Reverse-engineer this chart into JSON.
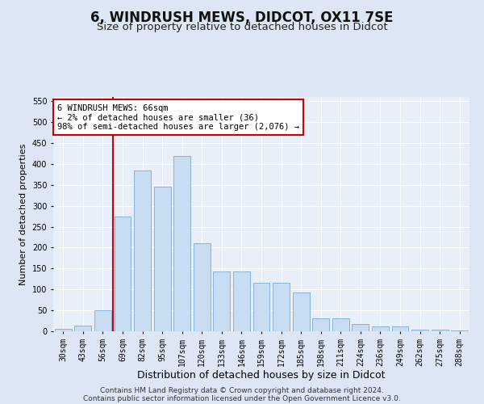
{
  "title": "6, WINDRUSH MEWS, DIDCOT, OX11 7SE",
  "subtitle": "Size of property relative to detached houses in Didcot",
  "xlabel": "Distribution of detached houses by size in Didcot",
  "ylabel": "Number of detached properties",
  "categories": [
    "30sqm",
    "43sqm",
    "56sqm",
    "69sqm",
    "82sqm",
    "95sqm",
    "107sqm",
    "120sqm",
    "133sqm",
    "146sqm",
    "159sqm",
    "172sqm",
    "185sqm",
    "198sqm",
    "211sqm",
    "224sqm",
    "236sqm",
    "249sqm",
    "262sqm",
    "275sqm",
    "288sqm"
  ],
  "values": [
    5,
    13,
    50,
    275,
    385,
    345,
    420,
    210,
    143,
    143,
    116,
    116,
    92,
    31,
    31,
    18,
    12,
    12,
    4,
    4,
    2
  ],
  "bar_color": "#c9ddf2",
  "bar_edge_color": "#7aaad4",
  "vline_x_index": 2.5,
  "vline_color": "#cc0000",
  "annotation_text": "6 WINDRUSH MEWS: 66sqm\n← 2% of detached houses are smaller (36)\n98% of semi-detached houses are larger (2,076) →",
  "annotation_box_facecolor": "#ffffff",
  "annotation_box_edgecolor": "#cc0000",
  "ylim": [
    0,
    560
  ],
  "yticks": [
    0,
    50,
    100,
    150,
    200,
    250,
    300,
    350,
    400,
    450,
    500,
    550
  ],
  "footer_line1": "Contains HM Land Registry data © Crown copyright and database right 2024.",
  "footer_line2": "Contains public sector information licensed under the Open Government Licence v3.0.",
  "fig_bg_color": "#dce6f5",
  "plot_bg_color": "#e8eff9",
  "grid_color": "#ffffff",
  "title_fontsize": 12,
  "subtitle_fontsize": 9.5,
  "xlabel_fontsize": 9,
  "ylabel_fontsize": 8,
  "tick_fontsize": 7,
  "annot_fontsize": 7.5,
  "footer_fontsize": 6.5
}
